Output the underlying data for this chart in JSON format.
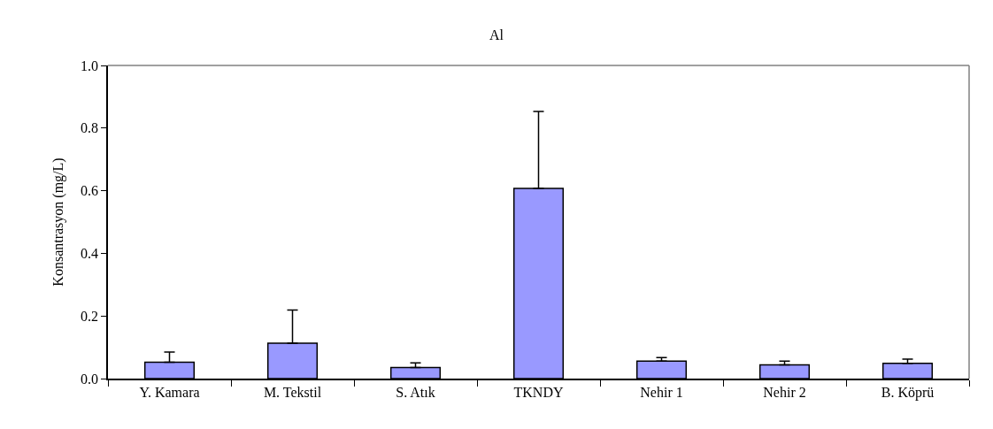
{
  "chart_data": {
    "type": "bar",
    "title": "Al",
    "ylabel": "Konsantrasyon (mg/L)",
    "categories": [
      "Y. Kamara",
      "M. Tekstil",
      "S. Atık",
      "TKNDY",
      "Nehir 1",
      "Nehir 2",
      "B. Köprü"
    ],
    "values": [
      0.052,
      0.113,
      0.035,
      0.607,
      0.056,
      0.044,
      0.049
    ],
    "errors": [
      [
        0.052,
        0.085
      ],
      [
        0.113,
        0.219
      ],
      [
        0.035,
        0.05
      ],
      [
        0.607,
        0.853
      ],
      [
        0.056,
        0.067
      ],
      [
        0.044,
        0.056
      ],
      [
        0.049,
        0.062
      ]
    ],
    "color": "#9999ff",
    "ylim": [
      0,
      1.0
    ],
    "yticks": [
      {
        "value": 0,
        "label": "0.0"
      },
      {
        "value": 0.2,
        "label": "0.2"
      },
      {
        "value": 0.4,
        "label": "0.4"
      },
      {
        "value": 0.6,
        "label": "0.6"
      },
      {
        "value": 0.8,
        "label": "0.8"
      },
      {
        "value": 1.0,
        "label": "1.0"
      }
    ],
    "legend": false
  }
}
